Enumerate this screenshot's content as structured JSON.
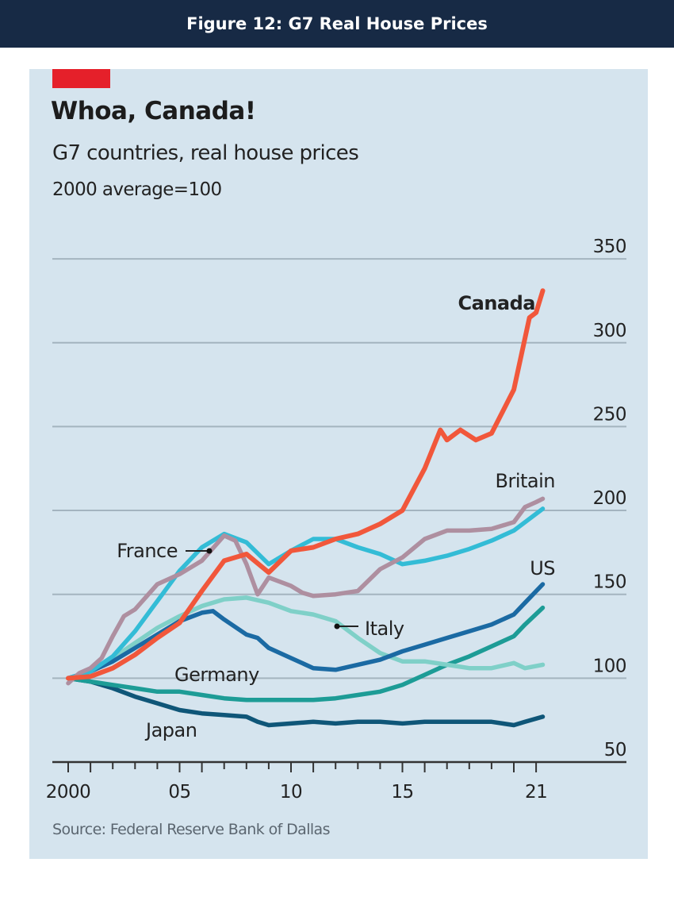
{
  "banner": {
    "title": "Figure 12: G7 Real House Prices"
  },
  "chart_data": {
    "type": "line",
    "title": "Whoa, Canada!",
    "subtitle": "G7 countries, real house prices",
    "unit_note": "2000 average=100",
    "source": "Source: Federal Reserve Bank of Dallas",
    "xlabel": "",
    "ylabel": "",
    "xlim": [
      2000,
      2023
    ],
    "ylim": [
      50,
      350
    ],
    "y_ticks": [
      50,
      100,
      150,
      200,
      250,
      300,
      350
    ],
    "y_tick_labels": [
      "50",
      "100",
      "150",
      "200",
      "250",
      "300",
      "350"
    ],
    "x_ticks": [
      2000,
      2001,
      2002,
      2003,
      2004,
      2005,
      2006,
      2007,
      2008,
      2009,
      2010,
      2011,
      2012,
      2013,
      2014,
      2015,
      2016,
      2017,
      2018,
      2019,
      2020,
      2021
    ],
    "x_tick_labels": [
      {
        "x": 2000,
        "label": "2000"
      },
      {
        "x": 2005,
        "label": "05"
      },
      {
        "x": 2010,
        "label": "10"
      },
      {
        "x": 2015,
        "label": "15"
      },
      {
        "x": 2021,
        "label": "21"
      }
    ],
    "grid": "horizontal",
    "series": [
      {
        "name": "Japan",
        "color": "#0f5678",
        "label": "Japan",
        "x": [
          2000,
          2001,
          2002,
          2003,
          2004,
          2005,
          2006,
          2007,
          2008,
          2008.5,
          2009,
          2010,
          2011,
          2012,
          2013,
          2014,
          2015,
          2016,
          2017,
          2018,
          2019,
          2020,
          2020.5,
          2021.3
        ],
        "values": [
          100,
          98,
          94,
          89,
          85,
          81,
          79,
          78,
          77,
          74,
          72,
          73,
          74,
          73,
          74,
          74,
          73,
          74,
          74,
          74,
          74,
          72,
          74,
          77
        ]
      },
      {
        "name": "Germany",
        "color": "#1d9c96",
        "label": "Germany",
        "x": [
          2000,
          2001,
          2002,
          2003,
          2004,
          2005,
          2006,
          2007,
          2008,
          2009,
          2010,
          2011,
          2012,
          2013,
          2014,
          2015,
          2016,
          2017,
          2018,
          2019,
          2020,
          2020.5,
          2021.3
        ],
        "values": [
          100,
          98,
          96,
          94,
          92,
          92,
          90,
          88,
          87,
          87,
          87,
          87,
          88,
          90,
          92,
          96,
          102,
          108,
          113,
          119,
          125,
          132,
          142
        ]
      },
      {
        "name": "Italy",
        "color": "#7fd0c8",
        "label": "Italy",
        "x": [
          2000,
          2001,
          2002,
          2003,
          2004,
          2005,
          2006,
          2007,
          2008,
          2009,
          2010,
          2011,
          2012,
          2013,
          2014,
          2015,
          2016,
          2017,
          2018,
          2019,
          2020,
          2020.5,
          2021.3
        ],
        "values": [
          100,
          104,
          112,
          121,
          130,
          137,
          143,
          147,
          148,
          145,
          140,
          138,
          134,
          124,
          115,
          110,
          110,
          108,
          106,
          106,
          109,
          106,
          108
        ]
      },
      {
        "name": "US",
        "color": "#1b6aa3",
        "label": "US",
        "x": [
          2000,
          2001,
          2002,
          2003,
          2004,
          2005,
          2006,
          2006.5,
          2007,
          2008,
          2008.5,
          2009,
          2010,
          2011,
          2012,
          2013,
          2014,
          2015,
          2016,
          2017,
          2018,
          2019,
          2020,
          2020.5,
          2021.3
        ],
        "values": [
          100,
          104,
          110,
          118,
          126,
          134,
          139,
          140,
          135,
          126,
          124,
          118,
          112,
          106,
          105,
          108,
          111,
          116,
          120,
          124,
          128,
          132,
          138,
          145,
          156
        ]
      },
      {
        "name": "France",
        "color": "#33bcd6",
        "label": "France",
        "x": [
          2000,
          2001,
          2002,
          2003,
          2004,
          2005,
          2006,
          2007,
          2008,
          2009,
          2010,
          2011,
          2012,
          2013,
          2014,
          2015,
          2016,
          2017,
          2018,
          2019,
          2020,
          2021.3
        ],
        "values": [
          100,
          104,
          113,
          128,
          146,
          164,
          178,
          186,
          181,
          168,
          176,
          183,
          183,
          178,
          174,
          168,
          170,
          173,
          177,
          182,
          188,
          201
        ]
      },
      {
        "name": "Britain",
        "color": "#ae8fa0",
        "label": "Britain",
        "x": [
          2000,
          2000.5,
          2001,
          2001.5,
          2002,
          2002.5,
          2003,
          2004,
          2005,
          2006,
          2007,
          2007.5,
          2008,
          2008.5,
          2009,
          2010,
          2010.5,
          2011,
          2012,
          2013,
          2014,
          2015,
          2016,
          2017,
          2018,
          2019,
          2020,
          2020.5,
          2021,
          2021.3
        ],
        "values": [
          97,
          103,
          106,
          112,
          125,
          137,
          141,
          156,
          162,
          170,
          185,
          182,
          168,
          150,
          160,
          155,
          151,
          149,
          150,
          152,
          165,
          172,
          183,
          188,
          188,
          189,
          193,
          202,
          205,
          207
        ]
      },
      {
        "name": "Canada",
        "color": "#f1573b",
        "label": "Canada",
        "x": [
          2000,
          2001,
          2002,
          2003,
          2004,
          2005,
          2006,
          2007,
          2008,
          2009,
          2010,
          2011,
          2012,
          2013,
          2014,
          2015,
          2016,
          2016.7,
          2017,
          2017.6,
          2018.3,
          2019,
          2020,
          2020.7,
          2021,
          2021.3
        ],
        "values": [
          100,
          101,
          106,
          114,
          124,
          133,
          152,
          170,
          174,
          163,
          176,
          178,
          183,
          186,
          192,
          200,
          225,
          248,
          242,
          248,
          242,
          246,
          272,
          315,
          318,
          331
        ]
      }
    ],
    "annotations": [
      {
        "text": "Canada",
        "series": "Canada",
        "bold": true
      },
      {
        "text": "Britain",
        "series": "Britain"
      },
      {
        "text": "US",
        "series": "US"
      },
      {
        "text": "France",
        "series": "France",
        "pointer": true
      },
      {
        "text": "Italy",
        "series": "Italy",
        "pointer": true
      },
      {
        "text": "Germany",
        "series": "Germany"
      },
      {
        "text": "Japan",
        "series": "Japan"
      }
    ]
  }
}
